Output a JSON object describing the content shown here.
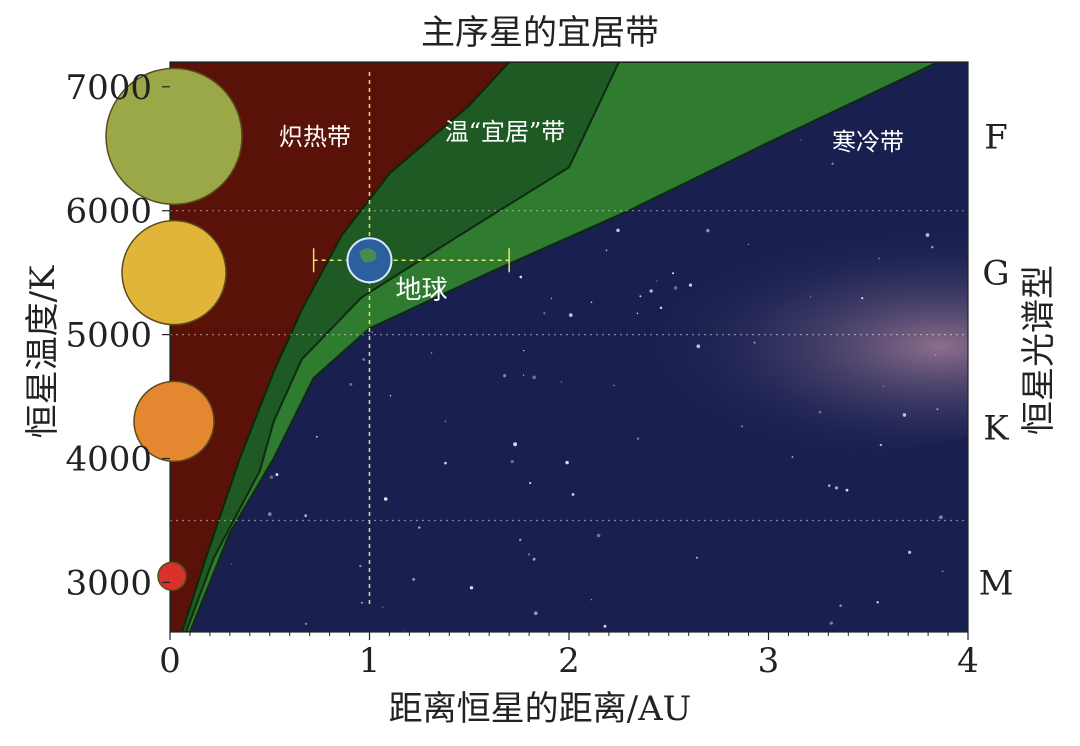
{
  "chart_data": {
    "type": "area",
    "title": "主序星的宜居带",
    "xlabel": "距离恒星的距离/AU",
    "ylabel": "恒星温度/K",
    "right_label": "恒星光谱型",
    "xlim": [
      0,
      4
    ],
    "ylim": [
      2600,
      7200
    ],
    "x_ticks": [
      "0",
      "1",
      "2",
      "3",
      "4"
    ],
    "y_ticks": [
      "3000",
      "4000",
      "5000",
      "6000",
      "7000"
    ],
    "spectral_types": [
      {
        "label": "F",
        "temp": 6600
      },
      {
        "label": "G",
        "temp": 5500
      },
      {
        "label": "K",
        "temp": 4250
      },
      {
        "label": "M",
        "temp": 3000
      }
    ],
    "spectral_boundaries": [
      6000,
      5000,
      3500
    ],
    "zones": {
      "hot": "炽热带",
      "habitable": "温“宜居”带",
      "cold": "寒冷带"
    },
    "habitable_inner_boundary": {
      "x": [
        0.06,
        0.18,
        0.35,
        0.52,
        0.66,
        0.86,
        1.1,
        1.5,
        1.7
      ],
      "y": [
        2600,
        3200,
        4000,
        4700,
        5200,
        5800,
        6300,
        6850,
        7200
      ]
    },
    "habitable_middle_boundary": {
      "x": [
        0.08,
        0.22,
        0.45,
        0.52,
        0.66,
        0.96,
        1.45,
        2.0,
        2.25
      ],
      "y": [
        2600,
        3200,
        3900,
        4300,
        4800,
        5300,
        5800,
        6350,
        7200
      ]
    },
    "habitable_outer_boundary": {
      "x": [
        0.1,
        0.3,
        0.52,
        0.72,
        1.0,
        1.6,
        2.3,
        3.0,
        3.85
      ],
      "y": [
        2600,
        3400,
        4000,
        4650,
        5050,
        5500,
        6000,
        6550,
        7200
      ]
    },
    "earth": {
      "label": "地球",
      "x": 1.0,
      "temp": 5600,
      "x_range": [
        0.72,
        1.7
      ]
    },
    "star_markers": [
      {
        "temp": 6600,
        "size": "large",
        "color": "#9ba848"
      },
      {
        "temp": 5500,
        "size": "medium",
        "color": "#e0b53a"
      },
      {
        "temp": 4300,
        "size": "small",
        "color": "#e58730"
      },
      {
        "temp": 3050,
        "size": "tiny",
        "color": "#d8322a"
      }
    ],
    "colors": {
      "hot_zone": "#5a1208",
      "habitable_zone": "#2f7b2f",
      "habitable_inner": "#1f5a24",
      "cold_zone": "#19204f",
      "guide": "#e2e66a"
    }
  }
}
